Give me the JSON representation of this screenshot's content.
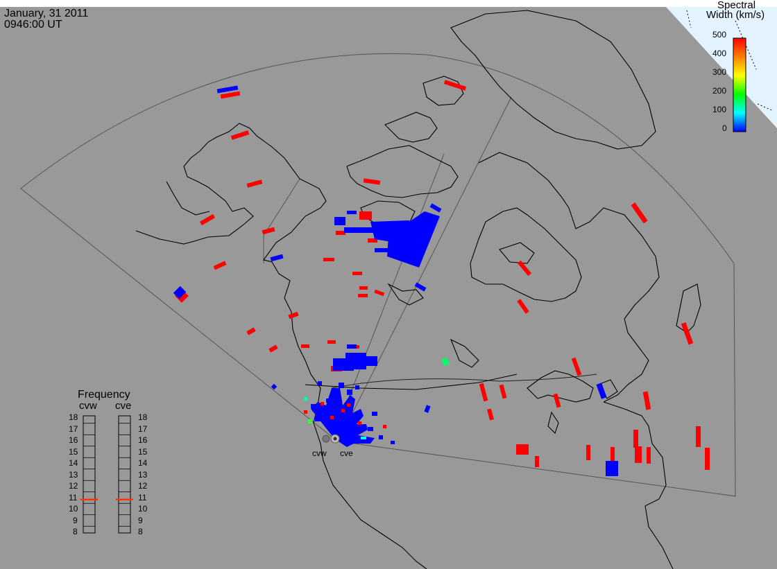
{
  "header": {
    "date": "January, 31 2011",
    "time": "0946:00 UT"
  },
  "colorbar": {
    "title_line1": "Spectral",
    "title_line2": "Width (km/s)",
    "ticks": [
      "500",
      "400",
      "300",
      "200",
      "100",
      "0"
    ],
    "colors": [
      "#ff0000",
      "#ff8000",
      "#ffff00",
      "#00ff00",
      "#00ffff",
      "#0000ff"
    ]
  },
  "frequency_panel": {
    "title": "Frequency",
    "radars": [
      "cvw",
      "cve"
    ],
    "ticks": [
      "18",
      "17",
      "16",
      "15",
      "14",
      "13",
      "12",
      "11",
      "10",
      "9",
      "8"
    ],
    "marker_color": "#ff3300",
    "marker_values_mhz": [
      10.8,
      10.8
    ]
  },
  "radar_labels": [
    "cvw",
    "cve"
  ],
  "colors": {
    "background": "#999999",
    "coastline": "#000000",
    "fov_outline": "#555555",
    "high_width": "#ff0000",
    "low_width": "#0000ff"
  }
}
